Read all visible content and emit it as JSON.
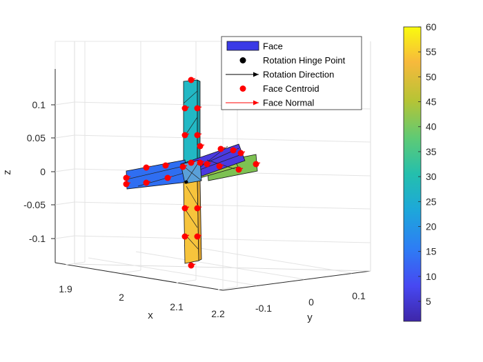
{
  "chart_data": {
    "type": "3d-surface-patches",
    "xlabel": "x",
    "ylabel": "y",
    "zlabel": "z",
    "x_ticks": [
      "1.9",
      "2",
      "2.1",
      "2.2"
    ],
    "y_ticks": [
      "-0.1",
      "0",
      "0.1"
    ],
    "z_ticks": [
      "0.1",
      "0.05",
      "0",
      "-0.05",
      "-0.1"
    ],
    "xlim": [
      1.86,
      2.22
    ],
    "ylim": [
      -0.16,
      0.16
    ],
    "zlim": [
      -0.14,
      0.14
    ],
    "grid": true,
    "legend_position": "top-right",
    "legend": [
      {
        "label": "Face",
        "marker": "patch",
        "color": "#3b3be6"
      },
      {
        "label": "Rotation Hinge Point",
        "marker": "dot",
        "color": "#000000"
      },
      {
        "label": "Rotation Direction",
        "marker": "arrow",
        "color": "#000000"
      },
      {
        "label": "Face Centroid",
        "marker": "dot",
        "color": "#ff0000"
      },
      {
        "label": "Face Normal",
        "marker": "arrow",
        "color": "#ff0000"
      }
    ],
    "colorbar": {
      "min": 1,
      "max": 60,
      "ticks": [
        "60",
        "55",
        "50",
        "45",
        "40",
        "35",
        "30",
        "25",
        "20",
        "15",
        "10",
        "5"
      ],
      "colormap": "parula"
    },
    "faces": [
      {
        "arm": "up",
        "color_value": 30,
        "color": "#22b8c4"
      },
      {
        "arm": "down",
        "color_value": 53,
        "color": "#f7c43c"
      },
      {
        "arm": "left",
        "color_value": 14,
        "color": "#2f6ef2"
      },
      {
        "arm": "front",
        "color_value": 5,
        "color": "#4a3ae0"
      },
      {
        "arm": "right",
        "color_value": 42,
        "color": "#7dc152"
      }
    ]
  }
}
